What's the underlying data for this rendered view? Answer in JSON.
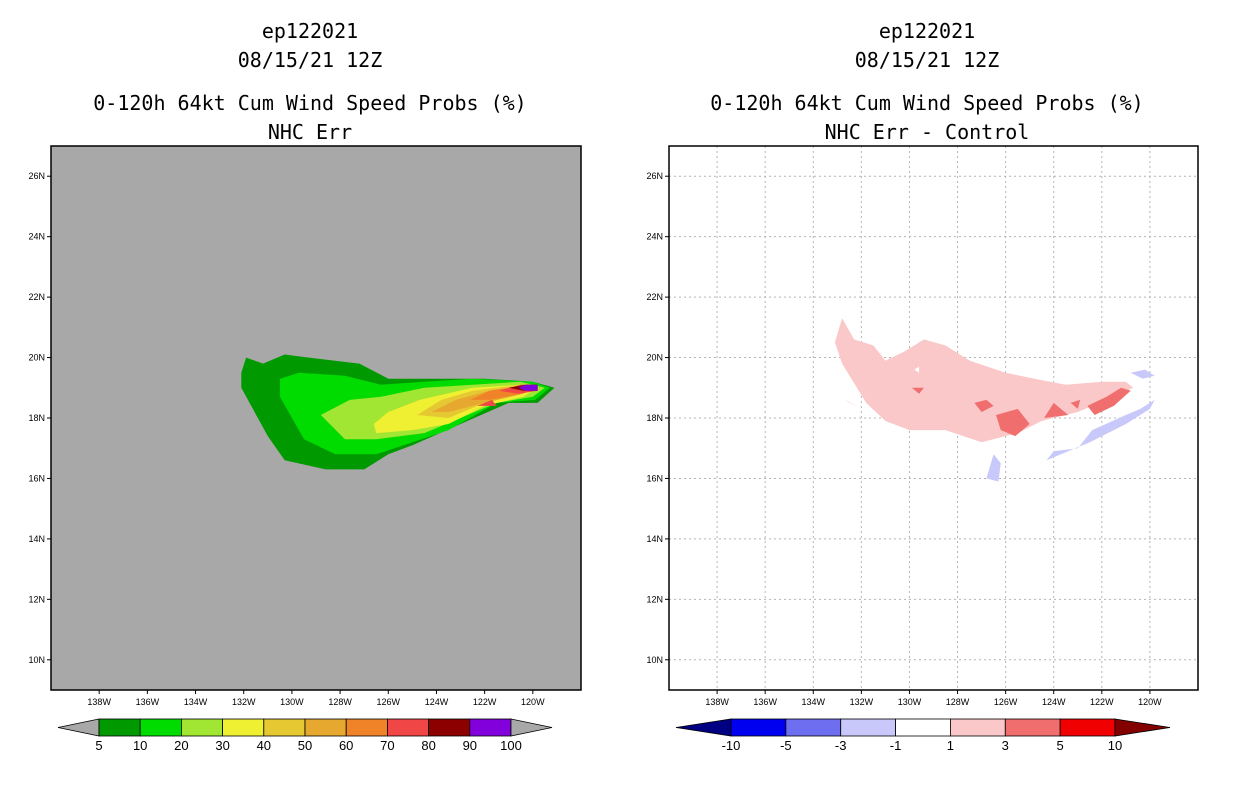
{
  "chart_data": [
    {
      "type": "contour",
      "storm": "ep122021",
      "datetime": "08/15/21 12Z",
      "title": "0-120h 64kt Cum Wind Speed Probs (%)",
      "subtitle": "NHC Err",
      "xlim": [
        -140,
        -118
      ],
      "ylim": [
        9,
        27
      ],
      "x_ticks": [
        {
          "v": -138,
          "label": "138W"
        },
        {
          "v": -136,
          "label": "136W"
        },
        {
          "v": -134,
          "label": "134W"
        },
        {
          "v": -132,
          "label": "132W"
        },
        {
          "v": -130,
          "label": "130W"
        },
        {
          "v": -128,
          "label": "128W"
        },
        {
          "v": -126,
          "label": "126W"
        },
        {
          "v": -124,
          "label": "124W"
        },
        {
          "v": -122,
          "label": "122W"
        },
        {
          "v": -120,
          "label": "120W"
        }
      ],
      "y_ticks": [
        {
          "v": 10,
          "label": "10N"
        },
        {
          "v": 12,
          "label": "12N"
        },
        {
          "v": 14,
          "label": "14N"
        },
        {
          "v": 16,
          "label": "16N"
        },
        {
          "v": 18,
          "label": "18N"
        },
        {
          "v": 20,
          "label": "20N"
        },
        {
          "v": 22,
          "label": "22N"
        },
        {
          "v": 24,
          "label": "24N"
        },
        {
          "v": 26,
          "label": "26N"
        }
      ],
      "grid": false,
      "background": "#a8a8a8",
      "levels": [
        {
          "label": "5"
        },
        {
          "label": "10"
        },
        {
          "label": "20"
        },
        {
          "label": "30"
        },
        {
          "label": "40"
        },
        {
          "label": "50"
        },
        {
          "label": "60"
        },
        {
          "label": "70"
        },
        {
          "label": "80"
        },
        {
          "label": "90"
        },
        {
          "label": "100"
        }
      ],
      "colorbar_colors": [
        "#a8a8a8",
        "#009a00",
        "#00dc00",
        "#a0e632",
        "#f0f032",
        "#e6c832",
        "#e6a82e",
        "#f08228",
        "#f04646",
        "#8c0000",
        "#8200dc",
        "#a8a8a8"
      ],
      "regions": [
        {
          "color": "#009a00",
          "points": [
            [
              -132.1,
              19.5
            ],
            [
              -131.9,
              20.0
            ],
            [
              -131.2,
              19.8
            ],
            [
              -130.3,
              20.1
            ],
            [
              -129.3,
              20.0
            ],
            [
              -127.2,
              19.8
            ],
            [
              -126.0,
              19.3
            ],
            [
              -122.0,
              19.3
            ],
            [
              -120.0,
              19.2
            ],
            [
              -119.1,
              19.0
            ],
            [
              -119.8,
              18.5
            ],
            [
              -121.0,
              18.5
            ],
            [
              -123.0,
              17.8
            ],
            [
              -125.0,
              17.1
            ],
            [
              -126.0,
              16.8
            ],
            [
              -127.0,
              16.3
            ],
            [
              -128.6,
              16.3
            ],
            [
              -130.3,
              16.6
            ],
            [
              -131.0,
              17.4
            ],
            [
              -132.1,
              19.0
            ]
          ]
        },
        {
          "color": "#00dc00",
          "points": [
            [
              -130.5,
              19.3
            ],
            [
              -129.7,
              19.5
            ],
            [
              -127.8,
              19.4
            ],
            [
              -126.3,
              19.1
            ],
            [
              -124.5,
              19.2
            ],
            [
              -122.5,
              19.3
            ],
            [
              -120.0,
              19.2
            ],
            [
              -119.3,
              19.0
            ],
            [
              -119.9,
              18.6
            ],
            [
              -121.5,
              18.5
            ],
            [
              -123.5,
              17.6
            ],
            [
              -125.0,
              17.2
            ],
            [
              -126.5,
              16.8
            ],
            [
              -128.2,
              16.8
            ],
            [
              -129.5,
              17.3
            ],
            [
              -130.5,
              18.7
            ]
          ]
        },
        {
          "color": "#a0e632",
          "points": [
            [
              -128.8,
              18.1
            ],
            [
              -127.6,
              18.6
            ],
            [
              -126.3,
              18.7
            ],
            [
              -124.5,
              19.0
            ],
            [
              -122.5,
              19.1
            ],
            [
              -120.5,
              19.2
            ],
            [
              -119.5,
              19.0
            ],
            [
              -120.0,
              18.7
            ],
            [
              -121.5,
              18.5
            ],
            [
              -123.0,
              18.0
            ],
            [
              -124.5,
              17.5
            ],
            [
              -126.5,
              17.3
            ],
            [
              -127.8,
              17.3
            ]
          ]
        },
        {
          "color": "#f0f032",
          "points": [
            [
              -126.6,
              17.8
            ],
            [
              -126.0,
              18.2
            ],
            [
              -124.7,
              18.6
            ],
            [
              -122.5,
              19.0
            ],
            [
              -120.5,
              19.1
            ],
            [
              -119.8,
              19.0
            ],
            [
              -120.4,
              18.7
            ],
            [
              -122.0,
              18.4
            ],
            [
              -123.5,
              17.8
            ],
            [
              -125.0,
              17.6
            ],
            [
              -126.5,
              17.5
            ]
          ]
        },
        {
          "color": "#e6c832",
          "points": [
            [
              -124.8,
              18.1
            ],
            [
              -123.8,
              18.6
            ],
            [
              -122.5,
              18.9
            ],
            [
              -120.5,
              19.1
            ],
            [
              -119.8,
              19.0
            ],
            [
              -120.4,
              18.8
            ],
            [
              -122.0,
              18.5
            ],
            [
              -123.5,
              18.0
            ]
          ]
        },
        {
          "color": "#e6a82e",
          "points": [
            [
              -124.2,
              18.2
            ],
            [
              -123.2,
              18.6
            ],
            [
              -121.8,
              18.9
            ],
            [
              -120.3,
              19.1
            ],
            [
              -119.8,
              19.0
            ],
            [
              -120.4,
              18.8
            ],
            [
              -122.0,
              18.5
            ],
            [
              -123.5,
              18.2
            ]
          ]
        },
        {
          "color": "#f08228",
          "points": [
            [
              -122.6,
              18.6
            ],
            [
              -121.8,
              18.9
            ],
            [
              -120.2,
              19.1
            ],
            [
              -119.8,
              19.0
            ],
            [
              -120.5,
              18.8
            ],
            [
              -121.8,
              18.6
            ]
          ]
        },
        {
          "color": "#f04646",
          "points": [
            [
              -122.3,
              18.4
            ],
            [
              -121.7,
              18.6
            ],
            [
              -121.5,
              18.4
            ]
          ]
        },
        {
          "color": "#f04646",
          "points": [
            [
              -121.4,
              18.9
            ],
            [
              -120.5,
              19.1
            ],
            [
              -119.8,
              19.1
            ],
            [
              -119.8,
              18.9
            ],
            [
              -120.6,
              18.8
            ]
          ]
        },
        {
          "color": "#8c0000",
          "points": [
            [
              -121.0,
              19.0
            ],
            [
              -120.3,
              19.1
            ],
            [
              -119.8,
              19.1
            ],
            [
              -119.8,
              18.9
            ],
            [
              -120.4,
              18.9
            ]
          ]
        },
        {
          "color": "#8200dc",
          "points": [
            [
              -120.6,
              19.0
            ],
            [
              -120.3,
              19.1
            ],
            [
              -119.8,
              19.1
            ],
            [
              -119.8,
              18.9
            ],
            [
              -120.3,
              18.9
            ]
          ]
        }
      ]
    },
    {
      "type": "contour",
      "storm": "ep122021",
      "datetime": "08/15/21 12Z",
      "title": "0-120h 64kt Cum Wind Speed Probs (%)",
      "subtitle": "NHC Err - Control",
      "xlim": [
        -140,
        -118
      ],
      "ylim": [
        9,
        27
      ],
      "x_ticks": [
        {
          "v": -138,
          "label": "138W"
        },
        {
          "v": -136,
          "label": "136W"
        },
        {
          "v": -134,
          "label": "134W"
        },
        {
          "v": -132,
          "label": "132W"
        },
        {
          "v": -130,
          "label": "130W"
        },
        {
          "v": -128,
          "label": "128W"
        },
        {
          "v": -126,
          "label": "126W"
        },
        {
          "v": -124,
          "label": "124W"
        },
        {
          "v": -122,
          "label": "122W"
        },
        {
          "v": -120,
          "label": "120W"
        }
      ],
      "y_ticks": [
        {
          "v": 10,
          "label": "10N"
        },
        {
          "v": 12,
          "label": "12N"
        },
        {
          "v": 14,
          "label": "14N"
        },
        {
          "v": 16,
          "label": "16N"
        },
        {
          "v": 18,
          "label": "18N"
        },
        {
          "v": 20,
          "label": "20N"
        },
        {
          "v": 22,
          "label": "22N"
        },
        {
          "v": 24,
          "label": "24N"
        },
        {
          "v": 26,
          "label": "26N"
        }
      ],
      "grid": true,
      "background": "#ffffff",
      "levels": [
        {
          "label": "-10"
        },
        {
          "label": "-5"
        },
        {
          "label": "-3"
        },
        {
          "label": "-1"
        },
        {
          "label": "1"
        },
        {
          "label": "3"
        },
        {
          "label": "5"
        },
        {
          "label": "10"
        }
      ],
      "colorbar_colors": [
        "#000082",
        "#0000f0",
        "#6e6ef0",
        "#c8c8fa",
        "#ffffff",
        "#fac8c8",
        "#f06e6e",
        "#f00000",
        "#820000"
      ],
      "regions": [
        {
          "color": "#fac8c8",
          "points": [
            [
              -133.1,
              20.5
            ],
            [
              -132.8,
              21.3
            ],
            [
              -132.3,
              20.6
            ],
            [
              -131.5,
              20.4
            ],
            [
              -131.0,
              19.9
            ],
            [
              -130.2,
              20.2
            ],
            [
              -129.4,
              20.6
            ],
            [
              -128.5,
              20.4
            ],
            [
              -127.5,
              19.9
            ],
            [
              -126.0,
              19.5
            ],
            [
              -124.8,
              19.3
            ],
            [
              -123.5,
              19.1
            ],
            [
              -122.0,
              19.2
            ],
            [
              -121.0,
              19.2
            ],
            [
              -120.7,
              19.0
            ],
            [
              -121.5,
              18.7
            ],
            [
              -123.0,
              18.2
            ],
            [
              -124.5,
              17.9
            ],
            [
              -125.5,
              17.5
            ],
            [
              -127.0,
              17.2
            ],
            [
              -128.5,
              17.6
            ],
            [
              -130.0,
              17.6
            ],
            [
              -131.0,
              17.9
            ],
            [
              -131.8,
              18.5
            ],
            [
              -132.8,
              19.8
            ]
          ]
        },
        {
          "color": "#fac8c8",
          "points": [
            [
              -132.7,
              18.6
            ],
            [
              -132.2,
              18.4
            ],
            [
              -132.5,
              18.5
            ]
          ]
        },
        {
          "color": "#f06e6e",
          "points": [
            [
              -127.3,
              18.5
            ],
            [
              -126.8,
              18.6
            ],
            [
              -126.5,
              18.4
            ],
            [
              -127.0,
              18.2
            ]
          ]
        },
        {
          "color": "#f06e6e",
          "points": [
            [
              -126.4,
              18.1
            ],
            [
              -125.5,
              18.3
            ],
            [
              -125.0,
              17.8
            ],
            [
              -125.6,
              17.4
            ],
            [
              -126.2,
              17.6
            ]
          ]
        },
        {
          "color": "#f06e6e",
          "points": [
            [
              -124.4,
              18.0
            ],
            [
              -124.0,
              18.5
            ],
            [
              -123.4,
              18.1
            ]
          ]
        },
        {
          "color": "#f06e6e",
          "points": [
            [
              -122.6,
              18.4
            ],
            [
              -121.8,
              18.7
            ],
            [
              -121.2,
              19.0
            ],
            [
              -120.8,
              18.9
            ],
            [
              -121.5,
              18.4
            ],
            [
              -122.3,
              18.1
            ]
          ]
        },
        {
          "color": "#f06e6e",
          "points": [
            [
              -123.3,
              18.5
            ],
            [
              -122.9,
              18.6
            ],
            [
              -123.0,
              18.3
            ]
          ]
        },
        {
          "color": "#f06e6e",
          "points": [
            [
              -129.9,
              19.0
            ],
            [
              -129.4,
              19.0
            ],
            [
              -129.6,
              18.8
            ]
          ]
        },
        {
          "color": "#ffffff",
          "points": [
            [
              -129.8,
              19.6
            ],
            [
              -129.6,
              19.7
            ],
            [
              -129.6,
              19.5
            ]
          ]
        },
        {
          "color": "#c8c8fa",
          "points": [
            [
              -124.3,
              16.6
            ],
            [
              -122.5,
              17.2
            ],
            [
              -121.0,
              17.8
            ],
            [
              -120.0,
              18.3
            ],
            [
              -119.8,
              18.6
            ],
            [
              -120.4,
              18.3
            ],
            [
              -121.0,
              18.1
            ],
            [
              -122.4,
              17.6
            ],
            [
              -123.0,
              17.0
            ],
            [
              -124.0,
              16.9
            ]
          ]
        },
        {
          "color": "#c8c8fa",
          "points": [
            [
              -126.8,
              16.0
            ],
            [
              -126.3,
              15.9
            ],
            [
              -126.2,
              16.5
            ],
            [
              -126.5,
              16.8
            ]
          ]
        },
        {
          "color": "#c8c8fa",
          "points": [
            [
              -120.8,
              19.5
            ],
            [
              -120.2,
              19.6
            ],
            [
              -119.8,
              19.4
            ],
            [
              -120.3,
              19.3
            ]
          ]
        }
      ]
    }
  ]
}
